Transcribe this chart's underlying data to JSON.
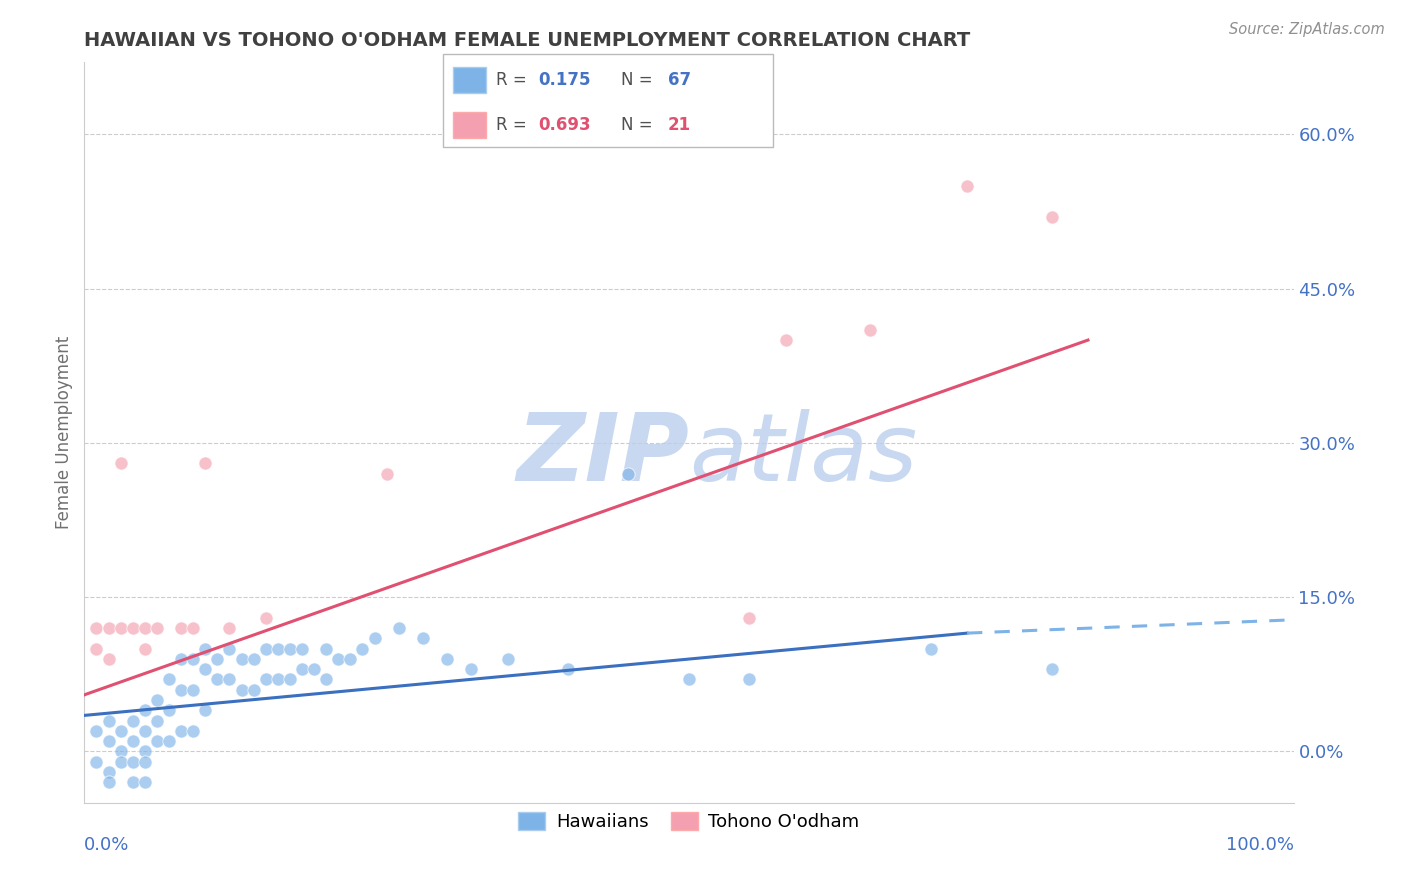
{
  "title": "HAWAIIAN VS TOHONO O'ODHAM FEMALE UNEMPLOYMENT CORRELATION CHART",
  "source": "Source: ZipAtlas.com",
  "ylabel": "Female Unemployment",
  "ytick_labels": [
    "0.0%",
    "15.0%",
    "30.0%",
    "45.0%",
    "60.0%"
  ],
  "ytick_values": [
    0.0,
    0.15,
    0.3,
    0.45,
    0.6
  ],
  "xlim": [
    0.0,
    1.0
  ],
  "ylim": [
    -0.05,
    0.67
  ],
  "hawaiian_R": 0.175,
  "hawaiian_N": 67,
  "tohono_R": 0.693,
  "tohono_N": 21,
  "hawaiian_color": "#7EB3E8",
  "tohono_color": "#F4A0B0",
  "hawaiian_line_color": "#3B6FBF",
  "tohono_line_color": "#E05070",
  "dashed_line_color": "#7EB3E8",
  "watermark_zip_color": "#C8D8F0",
  "watermark_atlas_color": "#C8D8F0",
  "title_color": "#404040",
  "source_color": "#909090",
  "axis_label_color": "#4472C4",
  "ytick_color": "#4472C4",
  "legend_border_color": "#AAAAAA",
  "hawaiian_label": "Hawaiians",
  "tohono_label": "Tohono O'odham",
  "hawaiian_x": [
    0.01,
    0.01,
    0.02,
    0.02,
    0.02,
    0.02,
    0.03,
    0.03,
    0.03,
    0.04,
    0.04,
    0.04,
    0.04,
    0.05,
    0.05,
    0.05,
    0.05,
    0.05,
    0.06,
    0.06,
    0.06,
    0.07,
    0.07,
    0.07,
    0.08,
    0.08,
    0.08,
    0.09,
    0.09,
    0.09,
    0.1,
    0.1,
    0.1,
    0.11,
    0.11,
    0.12,
    0.12,
    0.13,
    0.13,
    0.14,
    0.14,
    0.15,
    0.15,
    0.16,
    0.16,
    0.17,
    0.17,
    0.18,
    0.18,
    0.19,
    0.2,
    0.2,
    0.21,
    0.22,
    0.23,
    0.24,
    0.26,
    0.28,
    0.3,
    0.32,
    0.35,
    0.4,
    0.45,
    0.5,
    0.55,
    0.7,
    0.8
  ],
  "hawaiian_y": [
    0.02,
    -0.01,
    0.03,
    0.01,
    -0.02,
    -0.03,
    0.02,
    0.0,
    -0.01,
    0.01,
    0.03,
    -0.01,
    -0.03,
    0.04,
    0.02,
    0.0,
    -0.01,
    -0.03,
    0.05,
    0.03,
    0.01,
    0.07,
    0.04,
    0.01,
    0.09,
    0.06,
    0.02,
    0.09,
    0.06,
    0.02,
    0.1,
    0.08,
    0.04,
    0.09,
    0.07,
    0.1,
    0.07,
    0.09,
    0.06,
    0.09,
    0.06,
    0.1,
    0.07,
    0.1,
    0.07,
    0.1,
    0.07,
    0.1,
    0.08,
    0.08,
    0.1,
    0.07,
    0.09,
    0.09,
    0.1,
    0.11,
    0.12,
    0.11,
    0.09,
    0.08,
    0.09,
    0.08,
    0.27,
    0.07,
    0.07,
    0.1,
    0.08
  ],
  "tohono_x": [
    0.01,
    0.01,
    0.02,
    0.02,
    0.03,
    0.03,
    0.04,
    0.05,
    0.05,
    0.06,
    0.08,
    0.09,
    0.1,
    0.12,
    0.15,
    0.25,
    0.55,
    0.58,
    0.65,
    0.73,
    0.8
  ],
  "tohono_y": [
    0.1,
    0.12,
    0.09,
    0.12,
    0.12,
    0.28,
    0.12,
    0.1,
    0.12,
    0.12,
    0.12,
    0.12,
    0.28,
    0.12,
    0.13,
    0.27,
    0.13,
    0.4,
    0.41,
    0.55,
    0.52
  ],
  "hawaiian_trend_x": [
    0.0,
    0.73
  ],
  "hawaiian_trend_y": [
    0.035,
    0.115
  ],
  "tohono_trend_x": [
    0.0,
    0.83
  ],
  "tohono_trend_y": [
    0.055,
    0.4
  ],
  "dashed_trend_x": [
    0.73,
    1.0
  ],
  "dashed_trend_y": [
    0.115,
    0.128
  ],
  "marker_size": 90,
  "scatter_alpha": 0.65,
  "line_width": 2.2
}
